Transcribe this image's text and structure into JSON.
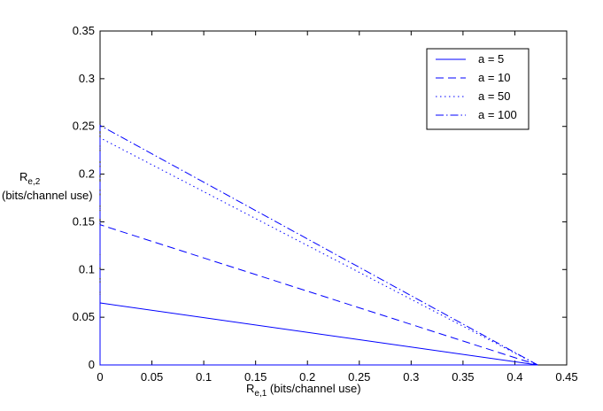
{
  "chart_data": {
    "type": "line",
    "xlabel": {
      "main": "R",
      "sub": "e,1",
      "unit": " (bits/channel use)"
    },
    "ylabel": {
      "main": "R",
      "sub": "e,2",
      "unit": "(bits/channel use)"
    },
    "xlim": [
      0,
      0.45
    ],
    "ylim": [
      0,
      0.35
    ],
    "xticks": [
      0,
      0.05,
      0.1,
      0.15,
      0.2,
      0.25,
      0.3,
      0.35,
      0.4,
      0.45
    ],
    "yticks": [
      0,
      0.05,
      0.1,
      0.15,
      0.2,
      0.25,
      0.3,
      0.35
    ],
    "xtick_labels": [
      "0",
      "0.05",
      "0.1",
      "0.15",
      "0.2",
      "0.25",
      "0.3",
      "0.35",
      "0.4",
      "0.45"
    ],
    "ytick_labels": [
      "0",
      "0.05",
      "0.1",
      "0.15",
      "0.2",
      "0.25",
      "0.3",
      "0.35"
    ],
    "grid": false,
    "legend_position": "top-right",
    "line_color": "#0000ff",
    "series": [
      {
        "name": "a = 5",
        "style": "solid",
        "x": [
          0,
          0,
          0.422
        ],
        "y": [
          0,
          0.065,
          0
        ]
      },
      {
        "name": "a = 10",
        "style": "dashed",
        "x": [
          0,
          0,
          0.422
        ],
        "y": [
          0,
          0.147,
          0
        ]
      },
      {
        "name": "a = 50",
        "style": "dotted",
        "x": [
          0,
          0,
          0.422
        ],
        "y": [
          0,
          0.238,
          0
        ]
      },
      {
        "name": "a = 100",
        "style": "dashdot",
        "x": [
          0,
          0,
          0.422
        ],
        "y": [
          0,
          0.251,
          0
        ]
      }
    ],
    "baseline": {
      "x": [
        0,
        0.422
      ],
      "y": [
        0,
        0
      ]
    }
  }
}
